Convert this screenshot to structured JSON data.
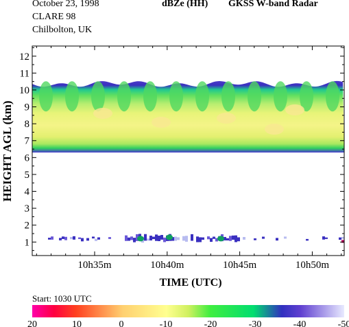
{
  "header": {
    "date": "October 23, 1998",
    "campaign": "CLARE 98",
    "location": "Chilbolton, UK",
    "product": "dBZe (HH)",
    "instrument": "GKSS  W-band Radar"
  },
  "start_label": "Start: 1030 UTC",
  "chart_data": {
    "type": "heatmap",
    "title": "dBZe (HH)   GKSS  W-band Radar",
    "xlabel": "TIME (UTC)",
    "ylabel": "HEIGHT AGL (km)",
    "x_ticks": [
      "10h35m",
      "10h40m",
      "10h45m",
      "10h50m"
    ],
    "x_tick_minutes": [
      35,
      40,
      45,
      50
    ],
    "xlim_minutes": [
      30.7,
      52.2
    ],
    "y_ticks": [
      1,
      2,
      3,
      4,
      5,
      6,
      7,
      8,
      9,
      10,
      11,
      12
    ],
    "ylim_km": [
      0.2,
      12.6
    ],
    "colorbar": {
      "unit": "dBZe",
      "ticks": [
        20,
        10,
        0,
        -10,
        -20,
        -30,
        -40,
        -50
      ],
      "range": [
        20,
        -50
      ]
    },
    "upper_layer": {
      "base_km": 6.3,
      "top_km": 10.6,
      "core_dbz": -12,
      "edge_dbz": -45
    },
    "lower_layer": {
      "base_km": 0.8,
      "top_km": 1.6,
      "typical_dbz": -40
    }
  }
}
